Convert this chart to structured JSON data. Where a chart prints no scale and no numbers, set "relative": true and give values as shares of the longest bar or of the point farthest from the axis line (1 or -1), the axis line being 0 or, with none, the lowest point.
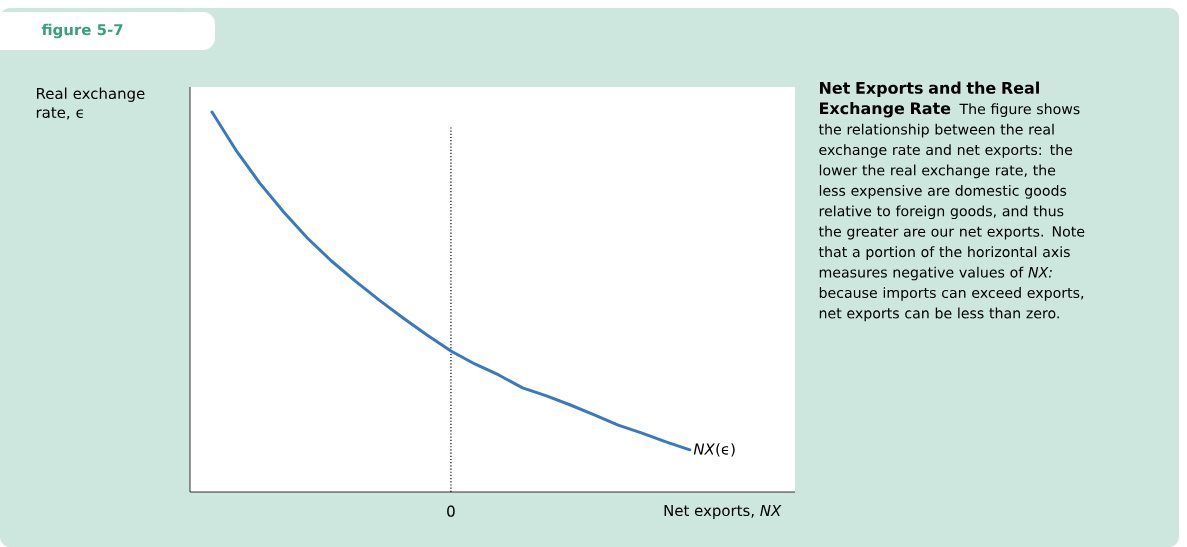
{
  "chart_data": {
    "type": "line",
    "title": "figure 5-7",
    "subtitle": "Net Exports and the Real Exchange Rate",
    "annotations": [
      "The figure shows the relationship between the real exchange rate and net exports: the lower the real exchange rate, the less expensive are domestic goods relative to foreign goods, and thus the greater are our net exports. Note that a portion of the horizontal axis measures negative values of *NX:* because imports can exceed exports, net exports can be less than zero."
    ],
    "xlabel": "Net exports, *NX*",
    "ylabel": "Real exchange rate, ϵ",
    "relative": true,
    "categories": [
      null,
      null,
      null,
      null,
      null,
      null,
      null,
      null,
      null,
      null,
      null,
      null,
      null,
      null,
      null,
      null,
      null,
      null,
      null,
      null,
      null
    ],
    "series": [
      {
        "name": "*NX*(ϵ)",
        "color": "#3a78c0",
        "values": [
          1.0,
          0.9,
          0.813,
          0.737,
          0.668,
          0.608,
          0.555,
          0.505,
          0.458,
          0.413,
          0.371,
          0.337,
          0.308,
          0.274,
          0.253,
          0.229,
          0.203,
          0.176,
          0.155,
          0.132,
          0.111
        ]
      }
    ],
    "ref_lines": [
      {
        "axis": "x",
        "value": "0",
        "line_style": "dotted"
      }
    ],
    "legend": false,
    "marker": "none",
    "line_style": "solid"
  }
}
